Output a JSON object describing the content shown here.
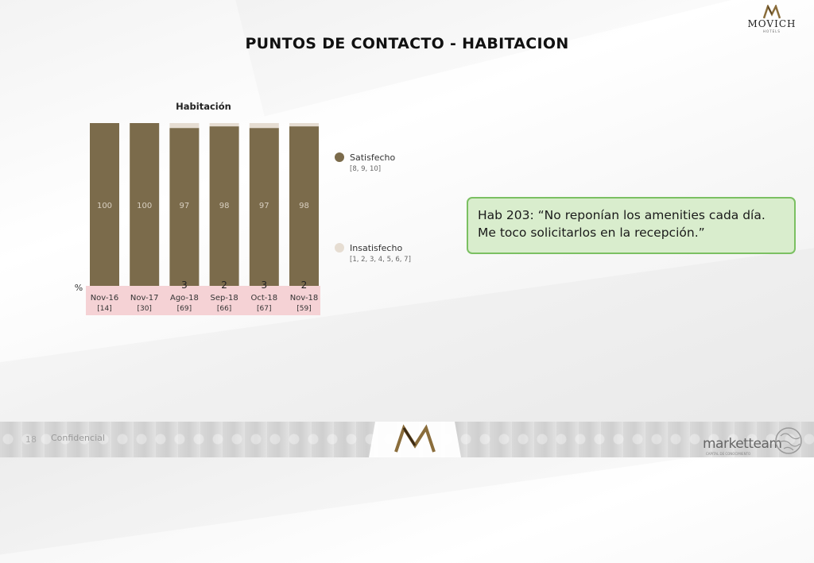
{
  "header": {
    "title": "PUNTOS DE CONTACTO - HABITACION"
  },
  "brand": {
    "name": "MOVICH",
    "sub": "HOTELS"
  },
  "chart_data": {
    "type": "bar",
    "stacked": true,
    "title": "Habitación",
    "ylabel": "%",
    "categories": [
      "Nov-16",
      "Nov-17",
      "Ago-18",
      "Sep-18",
      "Oct-18",
      "Nov-18"
    ],
    "sample_sizes": [
      "[14]",
      "[30]",
      "[69]",
      "[66]",
      "[67]",
      "[59]"
    ],
    "series": [
      {
        "name": "Satisfecho",
        "range": "[8, 9, 10]",
        "color": "#7b6b4b",
        "values": [
          100,
          100,
          97,
          98,
          97,
          98
        ],
        "labels": [
          "100",
          "100",
          "97",
          "98",
          "97",
          "98"
        ]
      },
      {
        "name": "Insatisfecho",
        "range": "[1, 2, 3, 4, 5, 6, 7]",
        "color": "#e6ddd2",
        "values": [
          0,
          0,
          3,
          2,
          3,
          2
        ],
        "labels": [
          "",
          "",
          "3",
          "2",
          "3",
          "2"
        ]
      }
    ],
    "ylim": [
      0,
      100
    ],
    "grid": false,
    "legend": "right"
  },
  "callout": {
    "line1": "Hab 203: “No reponían los amenities cada día.",
    "line2": "Me toco solicitarlos en la recepción.”"
  },
  "footer": {
    "page": "18",
    "confidential": "Confidencial",
    "agency": "marketteam",
    "agency_sub": "CAPITAL DE CONOCIMIENTO"
  }
}
